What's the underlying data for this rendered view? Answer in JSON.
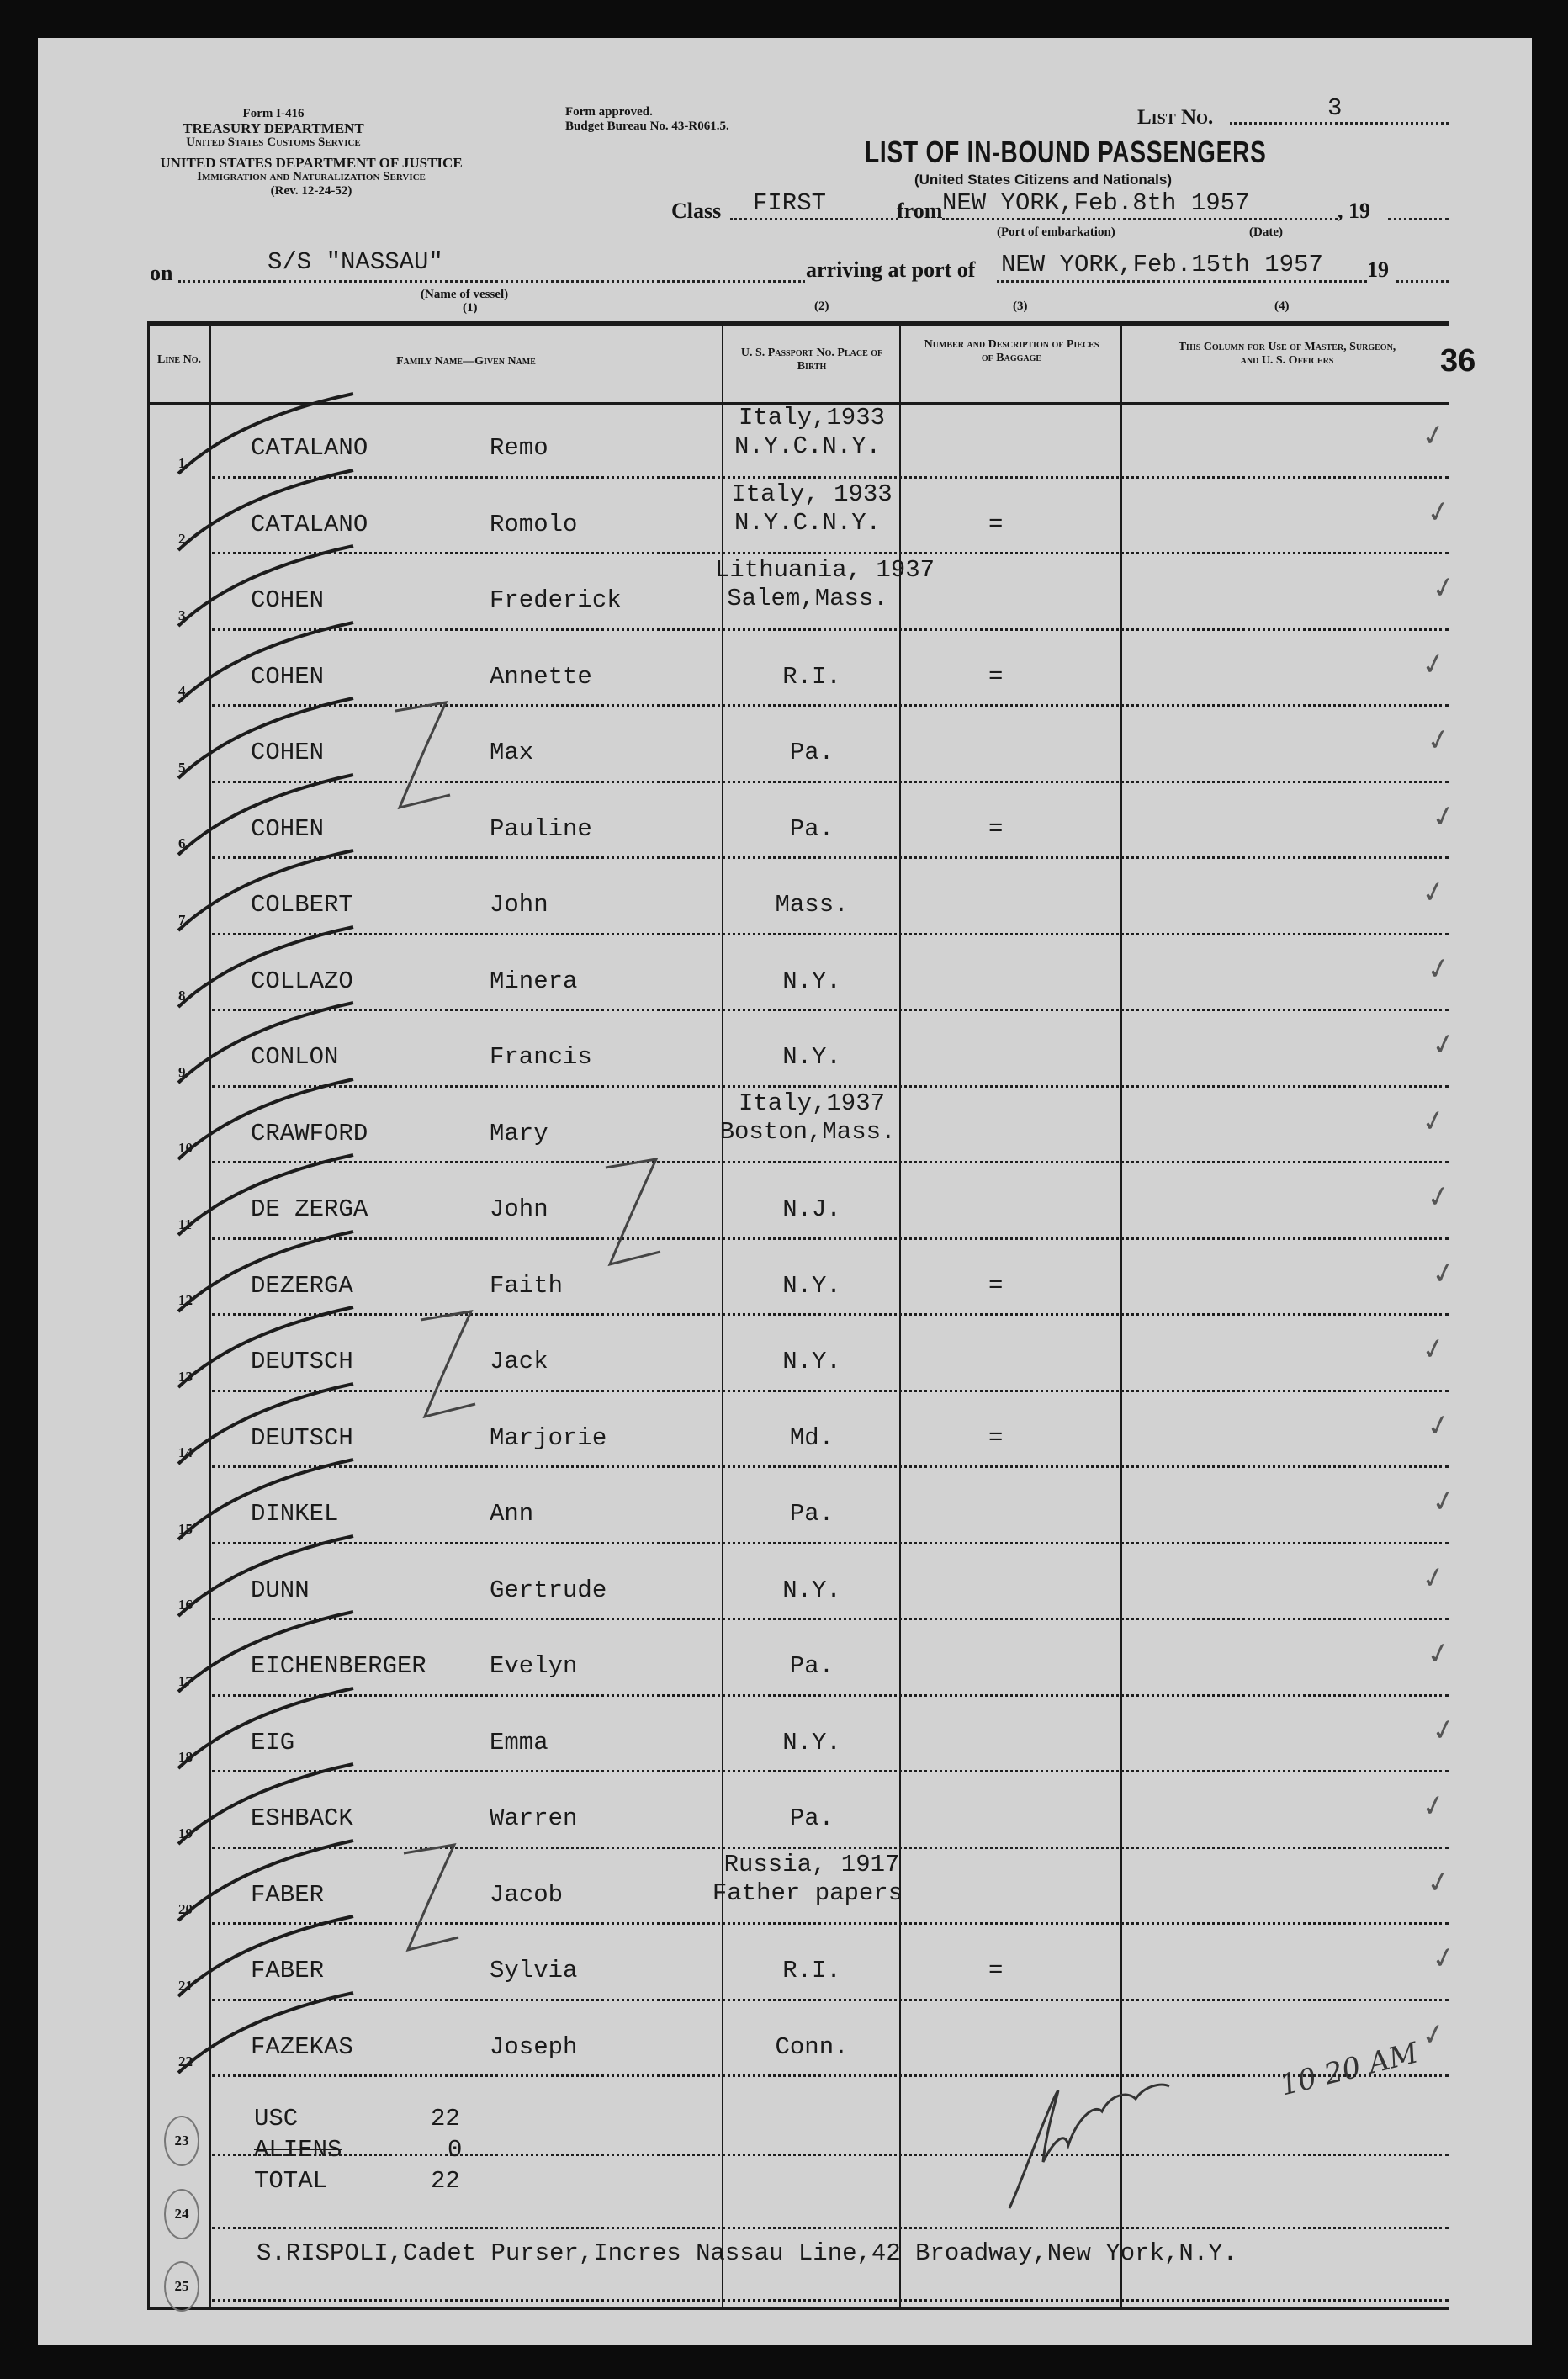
{
  "header": {
    "form_no": "Form I-416",
    "treasury": "TREASURY DEPARTMENT",
    "customs": "United States Customs Service",
    "justice": "UNITED STATES DEPARTMENT OF JUSTICE",
    "ins": "Immigration and Naturalization Service",
    "rev": "(Rev. 12-24-52)",
    "approved": "Form approved.",
    "budget": "Budget Bureau No. 43-R061.5.",
    "list_no_label": "List No.",
    "list_no": "3",
    "title": "LIST OF IN-BOUND PASSENGERS",
    "subtitle": "(United States Citizens and Nationals)",
    "class_label": "Class",
    "class_value": "FIRST",
    "from_label": "from",
    "from_value": "NEW YORK,Feb.8th 1957",
    "year_suffix": ", 19",
    "port_caption": "(Port of embarkation)",
    "date_caption": "(Date)",
    "on_label": "on",
    "vessel": "S/S \"NASSAU\"",
    "arriving_label": "arriving at port of",
    "arriving_value": "NEW YORK,Feb.15th 1957",
    "year_suffix2": "19",
    "vessel_caption": "(Name of vessel)",
    "col_numbers": [
      "(1)",
      "(2)",
      "(3)",
      "(4)"
    ],
    "page_number": "36"
  },
  "columns": {
    "line": "Line No.",
    "name": "Family Name—Given Name",
    "passport": "U. S. Passport No. Place of Birth",
    "baggage": "Number and Description of Pieces of Baggage",
    "officers": "This Column for Use of Master, Surgeon, and U. S. Officers"
  },
  "rows": [
    {
      "line": "1",
      "family": "CATALANO",
      "given": "Remo",
      "birth": [
        "Italy,1933",
        "N.Y.C.N.Y."
      ],
      "baggage": ""
    },
    {
      "line": "2",
      "family": "CATALANO",
      "given": "Romolo",
      "birth": [
        "Italy, 1933",
        "N.Y.C.N.Y."
      ],
      "baggage": "="
    },
    {
      "line": "3",
      "family": "COHEN",
      "given": "Frederick",
      "birth": [
        "Lithuania, 1937",
        "Salem,Mass."
      ],
      "baggage": ""
    },
    {
      "line": "4",
      "family": "COHEN",
      "given": "Annette",
      "birth": [
        "R.I."
      ],
      "baggage": "="
    },
    {
      "line": "5",
      "family": "COHEN",
      "given": "Max",
      "birth": [
        "Pa."
      ],
      "baggage": ""
    },
    {
      "line": "6",
      "family": "COHEN",
      "given": "Pauline",
      "birth": [
        "Pa."
      ],
      "baggage": "="
    },
    {
      "line": "7",
      "family": "COLBERT",
      "given": "John",
      "birth": [
        "Mass."
      ],
      "baggage": ""
    },
    {
      "line": "8",
      "family": "COLLAZO",
      "given": "Minera",
      "birth": [
        "N.Y."
      ],
      "baggage": ""
    },
    {
      "line": "9",
      "family": "CONLON",
      "given": "Francis",
      "birth": [
        "N.Y."
      ],
      "baggage": ""
    },
    {
      "line": "10",
      "family": "CRAWFORD",
      "given": "Mary",
      "birth": [
        "Italy,1937",
        "Boston,Mass."
      ],
      "baggage": ""
    },
    {
      "line": "11",
      "family": "DE ZERGA",
      "given": "John",
      "birth": [
        "N.J."
      ],
      "baggage": ""
    },
    {
      "line": "12",
      "family": "DEZERGA",
      "given": "Faith",
      "birth": [
        "N.Y."
      ],
      "baggage": "="
    },
    {
      "line": "13",
      "family": "DEUTSCH",
      "given": "Jack",
      "birth": [
        "N.Y."
      ],
      "baggage": ""
    },
    {
      "line": "14",
      "family": "DEUTSCH",
      "given": "Marjorie",
      "birth": [
        "Md."
      ],
      "baggage": "="
    },
    {
      "line": "15",
      "family": "DINKEL",
      "given": "Ann",
      "birth": [
        "Pa."
      ],
      "baggage": ""
    },
    {
      "line": "16",
      "family": "DUNN",
      "given": "Gertrude",
      "birth": [
        "N.Y."
      ],
      "baggage": ""
    },
    {
      "line": "17",
      "family": "EICHENBERGER",
      "given": "Evelyn",
      "birth": [
        "Pa."
      ],
      "baggage": ""
    },
    {
      "line": "18",
      "family": "EIG",
      "given": "Emma",
      "birth": [
        "N.Y."
      ],
      "baggage": ""
    },
    {
      "line": "19",
      "family": "ESHBACK",
      "given": "Warren",
      "birth": [
        "Pa."
      ],
      "baggage": ""
    },
    {
      "line": "20",
      "family": "FABER",
      "given": "Jacob",
      "birth": [
        "Russia, 1917",
        "Father papers"
      ],
      "baggage": ""
    },
    {
      "line": "21",
      "family": "FABER",
      "given": "Sylvia",
      "birth": [
        "R.I."
      ],
      "baggage": "="
    },
    {
      "line": "22",
      "family": "FAZEKAS",
      "given": "Joseph",
      "birth": [
        "Conn."
      ],
      "baggage": ""
    }
  ],
  "extra_lines": [
    "23",
    "24",
    "25"
  ],
  "totals": [
    {
      "label": "USC",
      "value": "22"
    },
    {
      "label": "ALIENS",
      "value": "0"
    },
    {
      "label": "TOTAL",
      "value": "22"
    }
  ],
  "handwritten_time": "10 20 AM",
  "footer": "S.RISPOLI,Cadet Purser,Incres Nassau Line,42 Broadway,New York,N.Y."
}
